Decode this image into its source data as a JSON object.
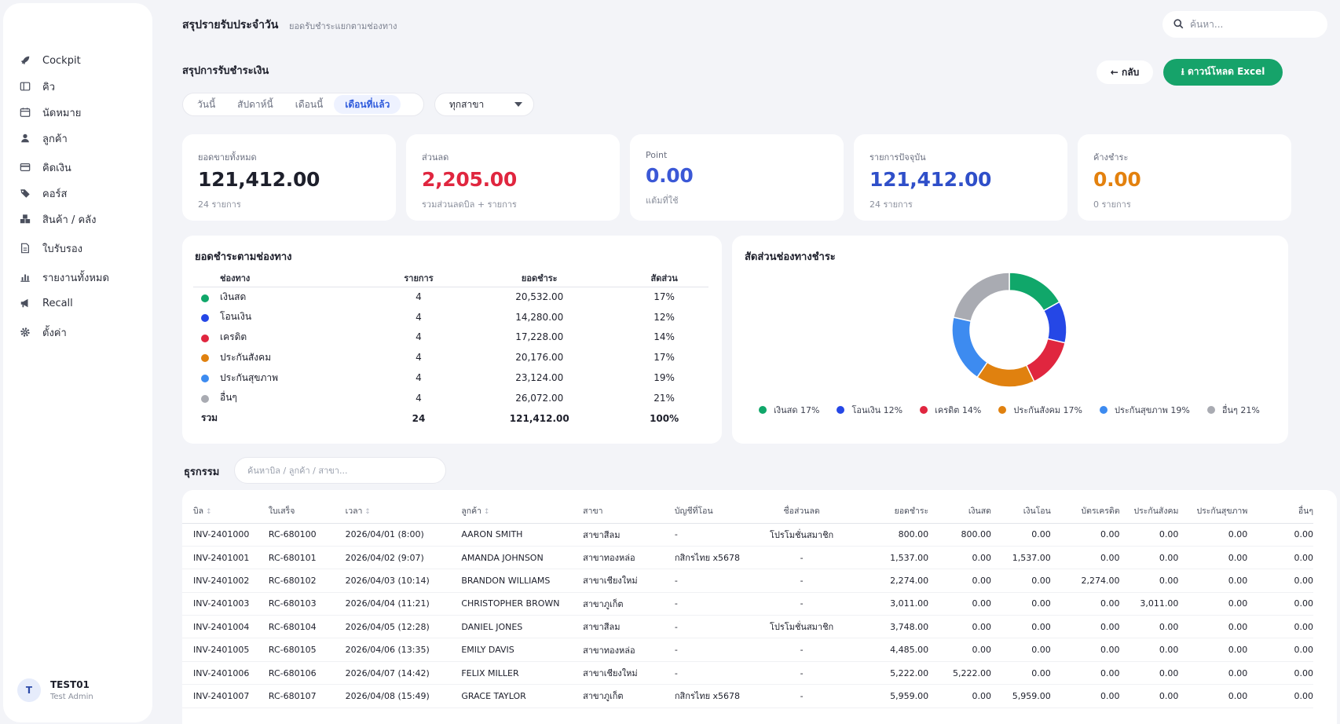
{
  "sidebar": {
    "items": [
      {
        "label": "Cockpit",
        "icon": "rocket-icon"
      },
      {
        "label": "คิว",
        "icon": "columns-icon"
      },
      {
        "label": "นัดหมาย",
        "icon": "calendar-icon"
      },
      {
        "label": "ลูกค้า",
        "icon": "user-icon"
      },
      {
        "label": "คิดเงิน",
        "icon": "credit-card-icon"
      },
      {
        "label": "คอร์ส",
        "icon": "tags-icon"
      },
      {
        "label": "สินค้า / คลัง",
        "icon": "boxes-icon"
      },
      {
        "label": "ใบรับรอง",
        "icon": "document-icon"
      },
      {
        "label": "รายงานทั้งหมด",
        "icon": "bar-chart-icon"
      },
      {
        "label": "Recall",
        "icon": "megaphone-icon"
      },
      {
        "label": "ตั้งค่า",
        "icon": "gear-icon"
      }
    ],
    "user": {
      "initial": "T",
      "name": "TEST01",
      "role": "Test Admin"
    }
  },
  "header": {
    "title": "สรุปรายรับประจำวัน",
    "subtitle": "ยอดรับชำระแยกตามช่องทาง",
    "search_placeholder": "ค้นหา..."
  },
  "toolbar": {
    "section_title": "สรุปการรับชำระเงิน",
    "back_label": "← กลับ",
    "excel_label": "⭳ ดาวน์โหลด Excel",
    "tabs": [
      "วันนี้",
      "สัปดาห์นี้",
      "เดือนนี้",
      "เดือนที่แล้ว"
    ],
    "active_tab": 3,
    "branch": "ทุกสาขา"
  },
  "kpis": [
    {
      "label": "ยอดขายทั้งหมด",
      "value": "121,412.00",
      "sub": "24 รายการ",
      "color": "#1d1f2b"
    },
    {
      "label": "ส่วนลด",
      "value": "2,205.00",
      "sub": "รวมส่วนลดบิล + รายการ",
      "color": "#e0263f"
    },
    {
      "label": "Point",
      "value": "0.00",
      "sub": "แต้มที่ใช้",
      "color": "#3b58d6"
    },
    {
      "label": "รายการปัจจุบัน",
      "value": "121,412.00",
      "sub": "24 รายการ",
      "color": "#2f4fc9"
    },
    {
      "label": "ค้างชำระ",
      "value": "0.00",
      "sub": "0 รายการ",
      "color": "#e3810e"
    }
  ],
  "payments": {
    "title": "ยอดชำระตามช่องทาง",
    "headers": {
      "channel": "ช่องทาง",
      "count": "รายการ",
      "amount": "ยอดชำระ",
      "pct": "สัดส่วน"
    },
    "rows": [
      {
        "channel": "เงินสด",
        "count": "4",
        "amount": "20,532.00",
        "pct": "17%",
        "color": "#10a76a"
      },
      {
        "channel": "โอนเงิน",
        "count": "4",
        "amount": "14,280.00",
        "pct": "12%",
        "color": "#2547e6"
      },
      {
        "channel": "เครดิต",
        "count": "4",
        "amount": "17,228.00",
        "pct": "14%",
        "color": "#e0263f"
      },
      {
        "channel": "ประกันสังคม",
        "count": "4",
        "amount": "20,176.00",
        "pct": "17%",
        "color": "#e0810f"
      },
      {
        "channel": "ประกันสุขภาพ",
        "count": "4",
        "amount": "23,124.00",
        "pct": "19%",
        "color": "#3d8bf0"
      },
      {
        "channel": "อื่นๆ",
        "count": "4",
        "amount": "26,072.00",
        "pct": "21%",
        "color": "#a9abb2"
      }
    ],
    "total": {
      "label": "รวม",
      "count": "24",
      "amount": "121,412.00",
      "pct": "100%"
    }
  },
  "donut": {
    "title": "สัดส่วนช่องทางชำระ",
    "legend": [
      "เงินสด 17%",
      "โอนเงิน 12%",
      "เครดิต 14%",
      "ประกันสังคม 17%",
      "ประกันสุขภาพ 19%",
      "อื่นๆ 21%"
    ]
  },
  "chart_data": {
    "type": "pie",
    "title": "สัดส่วนช่องทางชำระ",
    "categories": [
      "เงินสด",
      "โอนเงิน",
      "เครดิต",
      "ประกันสังคม",
      "ประกันสุขภาพ",
      "อื่นๆ"
    ],
    "values": [
      20532,
      14280,
      17228,
      20176,
      23124,
      26072
    ],
    "colors": [
      "#10a76a",
      "#2547e6",
      "#e0263f",
      "#e0810f",
      "#3d8bf0",
      "#a9abb2"
    ],
    "legend": "bottom"
  },
  "transactions": {
    "title": "ธุรกรรม",
    "search_placeholder": "ค้นหาบิล / ลูกค้า / สาขา...",
    "headers": [
      "บิล",
      "ใบเสร็จ",
      "เวลา",
      "ลูกค้า",
      "สาขา",
      "บัญชีที่โอน",
      "ชื่อส่วนลด",
      "ยอดชำระ",
      "เงินสด",
      "เงินโอน",
      "บัตรเครดิต",
      "ประกันสังคม",
      "ประกันสุขภาพ",
      "อื่นๆ"
    ],
    "rows": [
      [
        "INV-2401000",
        "RC-680100",
        "2026/04/01 (8:00)",
        "AARON SMITH",
        "สาขาสีลม",
        "-",
        "โปรโมชั่นสมาชิก",
        "800.00",
        "800.00",
        "0.00",
        "0.00",
        "0.00",
        "0.00",
        "0.00"
      ],
      [
        "INV-2401001",
        "RC-680101",
        "2026/04/02 (9:07)",
        "AMANDA JOHNSON",
        "สาขาทองหล่อ",
        "กสิกรไทย x5678",
        "-",
        "1,537.00",
        "0.00",
        "1,537.00",
        "0.00",
        "0.00",
        "0.00",
        "0.00"
      ],
      [
        "INV-2401002",
        "RC-680102",
        "2026/04/03 (10:14)",
        "BRANDON WILLIAMS",
        "สาขาเชียงใหม่",
        "-",
        "-",
        "2,274.00",
        "0.00",
        "0.00",
        "2,274.00",
        "0.00",
        "0.00",
        "0.00"
      ],
      [
        "INV-2401003",
        "RC-680103",
        "2026/04/04 (11:21)",
        "CHRISTOPHER BROWN",
        "สาขาภูเก็ต",
        "-",
        "-",
        "3,011.00",
        "0.00",
        "0.00",
        "0.00",
        "3,011.00",
        "0.00",
        "0.00"
      ],
      [
        "INV-2401004",
        "RC-680104",
        "2026/04/05 (12:28)",
        "DANIEL JONES",
        "สาขาสีลม",
        "-",
        "โปรโมชั่นสมาชิก",
        "3,748.00",
        "0.00",
        "0.00",
        "0.00",
        "0.00",
        "0.00",
        "0.00"
      ],
      [
        "INV-2401005",
        "RC-680105",
        "2026/04/06 (13:35)",
        "EMILY DAVIS",
        "สาขาทองหล่อ",
        "-",
        "-",
        "4,485.00",
        "0.00",
        "0.00",
        "0.00",
        "0.00",
        "0.00",
        "0.00"
      ],
      [
        "INV-2401006",
        "RC-680106",
        "2026/04/07 (14:42)",
        "FELIX MILLER",
        "สาขาเชียงใหม่",
        "-",
        "-",
        "5,222.00",
        "5,222.00",
        "0.00",
        "0.00",
        "0.00",
        "0.00",
        "0.00"
      ],
      [
        "INV-2401007",
        "RC-680107",
        "2026/04/08 (15:49)",
        "GRACE TAYLOR",
        "สาขาภูเก็ต",
        "กสิกรไทย x5678",
        "-",
        "5,959.00",
        "0.00",
        "5,959.00",
        "0.00",
        "0.00",
        "0.00",
        "0.00"
      ]
    ]
  }
}
